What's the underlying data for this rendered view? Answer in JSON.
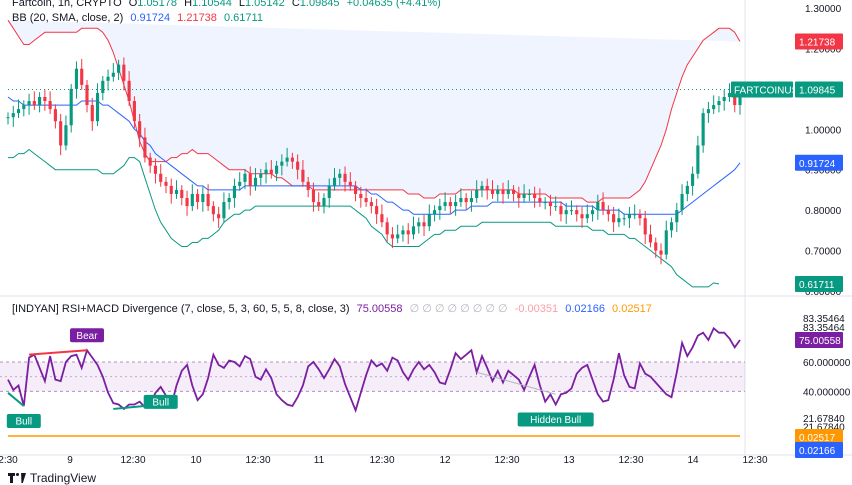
{
  "legend_main": {
    "symbol": "Fartcoin, 1h, CRYPTO",
    "o_label": "O",
    "o_val": "1.05178",
    "h_label": "H",
    "h_val": "1.10544",
    "l_label": "L",
    "l_val": "1.05142",
    "c_label": "C",
    "c_val": "1.09845",
    "change": "+0.04635 (+4.41%)"
  },
  "legend_bb": {
    "label": "BB (20, SMA, close, 2)",
    "basis": "0.91724",
    "upper": "1.21738",
    "lower": "0.61711"
  },
  "legend_osc": {
    "label": "[INDYAN] RSI+MACD Divergence (7, close, 5, 3, 60, 5, 5, 8, close, 3)",
    "rsi": "75.00558",
    "zeros": "∅ ∅ ∅ ∅ ∅ ∅ ∅ ∅",
    "macd_neg": "-0.00351",
    "macd_a": "0.02166",
    "macd_b": "0.02517"
  },
  "colors": {
    "up": "#089981",
    "down": "#f23645",
    "bb_upper": "#f23645",
    "bb_basis": "#2962ff",
    "bb_lower": "#089981",
    "rsi": "#7b1fa2",
    "macd": "#ff9800",
    "band": "#7b1fa2"
  },
  "footer": {
    "brand": "TradingView"
  },
  "chart_data": [
    {
      "type": "candlestick",
      "title": "Fartcoin, 1h, CRYPTO",
      "price_axis_ticks": [
        "1.30000",
        "1.20000",
        "1.00000",
        "0.90000",
        "0.80000",
        "0.70000",
        "0.60000"
      ],
      "price_tags": [
        {
          "label": "",
          "value": "1.21738",
          "price": 1.21738,
          "color": "#f23645"
        },
        {
          "label": "FARTCOINUSD",
          "value": "1.09845",
          "price": 1.09845,
          "color": "#089981"
        },
        {
          "label": "",
          "value": "0.91724",
          "price": 0.91724,
          "color": "#2962ff"
        },
        {
          "label": "",
          "value": "0.61711",
          "price": 0.61711,
          "color": "#089981"
        }
      ],
      "ylim": [
        0.59,
        1.32
      ],
      "x_ticks": [
        "2:30",
        "9",
        "12:30",
        "10",
        "12:30",
        "11",
        "12:30",
        "12",
        "12:30",
        "13",
        "12:30",
        "14",
        "12:30"
      ],
      "closes": [
        1.03,
        1.04,
        1.05,
        1.06,
        1.07,
        1.06,
        1.08,
        1.07,
        1.05,
        1.02,
        0.96,
        1.01,
        1.1,
        1.15,
        1.11,
        1.06,
        1.02,
        1.09,
        1.12,
        1.13,
        1.14,
        1.16,
        1.12,
        1.07,
        1.02,
        0.98,
        0.93,
        0.91,
        0.89,
        0.87,
        0.86,
        0.84,
        0.85,
        0.83,
        0.81,
        0.84,
        0.82,
        0.84,
        0.81,
        0.79,
        0.78,
        0.82,
        0.83,
        0.86,
        0.87,
        0.89,
        0.86,
        0.88,
        0.89,
        0.9,
        0.89,
        0.91,
        0.92,
        0.93,
        0.92,
        0.9,
        0.87,
        0.85,
        0.82,
        0.81,
        0.83,
        0.86,
        0.88,
        0.89,
        0.87,
        0.86,
        0.84,
        0.83,
        0.82,
        0.81,
        0.79,
        0.77,
        0.74,
        0.73,
        0.74,
        0.75,
        0.74,
        0.76,
        0.77,
        0.76,
        0.79,
        0.8,
        0.81,
        0.82,
        0.81,
        0.82,
        0.83,
        0.82,
        0.83,
        0.85,
        0.86,
        0.85,
        0.84,
        0.85,
        0.84,
        0.85,
        0.84,
        0.83,
        0.84,
        0.84,
        0.83,
        0.82,
        0.82,
        0.81,
        0.81,
        0.79,
        0.8,
        0.8,
        0.79,
        0.78,
        0.79,
        0.8,
        0.82,
        0.8,
        0.79,
        0.77,
        0.78,
        0.78,
        0.79,
        0.79,
        0.78,
        0.74,
        0.72,
        0.7,
        0.69,
        0.75,
        0.77,
        0.8,
        0.84,
        0.86,
        0.89,
        0.96,
        1.04,
        1.05,
        1.06,
        1.07,
        1.08,
        1.09,
        1.06,
        1.09845
      ],
      "bb_upper": [
        1.27,
        1.25,
        1.23,
        1.21,
        1.21,
        1.22,
        1.23,
        1.24,
        1.24,
        1.24,
        1.24,
        1.24,
        1.24,
        1.24,
        1.25,
        1.25,
        1.25,
        1.25,
        1.24,
        1.22,
        1.19,
        1.15,
        1.11,
        1.07,
        1.02,
        0.97,
        0.94,
        0.92,
        0.92,
        0.92,
        0.92,
        0.93,
        0.93,
        0.94,
        0.94,
        0.95,
        0.94,
        0.94,
        0.94,
        0.93,
        0.92,
        0.91,
        0.9,
        0.9,
        0.9,
        0.9,
        0.89,
        0.89,
        0.89,
        0.89,
        0.89,
        0.88,
        0.88,
        0.87,
        0.86,
        0.86,
        0.86,
        0.86,
        0.85,
        0.85,
        0.85,
        0.85,
        0.85,
        0.85,
        0.85,
        0.85,
        0.85,
        0.85,
        0.85,
        0.85,
        0.85,
        0.85,
        0.85,
        0.85,
        0.85,
        0.85,
        0.84,
        0.84,
        0.84,
        0.83,
        0.83,
        0.83,
        0.84,
        0.84,
        0.84,
        0.84,
        0.85,
        0.85,
        0.85,
        0.85,
        0.85,
        0.85,
        0.85,
        0.85,
        0.85,
        0.85,
        0.85,
        0.84,
        0.84,
        0.84,
        0.84,
        0.84,
        0.84,
        0.83,
        0.83,
        0.83,
        0.83,
        0.83,
        0.83,
        0.83,
        0.82,
        0.82,
        0.82,
        0.83,
        0.83,
        0.83,
        0.83,
        0.83,
        0.83,
        0.84,
        0.85,
        0.87,
        0.9,
        0.93,
        0.96,
        1.0,
        1.05,
        1.09,
        1.13,
        1.16,
        1.18,
        1.2,
        1.22,
        1.23,
        1.24,
        1.25,
        1.25,
        1.25,
        1.24,
        1.21738
      ],
      "bb_basis": [
        1.08,
        1.07,
        1.07,
        1.06,
        1.06,
        1.06,
        1.06,
        1.06,
        1.06,
        1.06,
        1.06,
        1.06,
        1.06,
        1.06,
        1.07,
        1.07,
        1.07,
        1.07,
        1.06,
        1.06,
        1.05,
        1.04,
        1.03,
        1.02,
        1.0,
        0.99,
        0.97,
        0.96,
        0.94,
        0.93,
        0.92,
        0.91,
        0.9,
        0.89,
        0.88,
        0.87,
        0.86,
        0.86,
        0.85,
        0.85,
        0.85,
        0.85,
        0.85,
        0.85,
        0.85,
        0.86,
        0.86,
        0.86,
        0.86,
        0.86,
        0.86,
        0.86,
        0.86,
        0.86,
        0.86,
        0.86,
        0.86,
        0.86,
        0.86,
        0.86,
        0.86,
        0.86,
        0.86,
        0.86,
        0.86,
        0.86,
        0.86,
        0.85,
        0.85,
        0.84,
        0.84,
        0.83,
        0.82,
        0.82,
        0.81,
        0.8,
        0.8,
        0.79,
        0.79,
        0.79,
        0.79,
        0.79,
        0.79,
        0.79,
        0.79,
        0.8,
        0.8,
        0.8,
        0.81,
        0.81,
        0.81,
        0.81,
        0.82,
        0.82,
        0.82,
        0.82,
        0.82,
        0.82,
        0.82,
        0.82,
        0.82,
        0.82,
        0.82,
        0.82,
        0.82,
        0.82,
        0.81,
        0.81,
        0.81,
        0.81,
        0.81,
        0.81,
        0.8,
        0.8,
        0.8,
        0.8,
        0.8,
        0.79,
        0.79,
        0.79,
        0.79,
        0.79,
        0.79,
        0.79,
        0.79,
        0.79,
        0.79,
        0.79,
        0.8,
        0.81,
        0.82,
        0.83,
        0.84,
        0.85,
        0.86,
        0.87,
        0.88,
        0.89,
        0.9,
        0.91724
      ],
      "bb_lower": [
        0.93,
        0.93,
        0.94,
        0.94,
        0.95,
        0.94,
        0.93,
        0.92,
        0.91,
        0.9,
        0.9,
        0.9,
        0.9,
        0.9,
        0.9,
        0.9,
        0.9,
        0.9,
        0.89,
        0.89,
        0.89,
        0.9,
        0.91,
        0.93,
        0.93,
        0.92,
        0.88,
        0.84,
        0.8,
        0.77,
        0.75,
        0.73,
        0.72,
        0.71,
        0.71,
        0.72,
        0.72,
        0.73,
        0.73,
        0.74,
        0.75,
        0.77,
        0.78,
        0.79,
        0.79,
        0.8,
        0.8,
        0.81,
        0.81,
        0.81,
        0.81,
        0.81,
        0.81,
        0.81,
        0.81,
        0.81,
        0.81,
        0.81,
        0.81,
        0.81,
        0.81,
        0.81,
        0.81,
        0.81,
        0.81,
        0.81,
        0.8,
        0.79,
        0.78,
        0.76,
        0.75,
        0.74,
        0.72,
        0.71,
        0.71,
        0.71,
        0.71,
        0.71,
        0.71,
        0.72,
        0.73,
        0.74,
        0.74,
        0.75,
        0.75,
        0.75,
        0.76,
        0.76,
        0.76,
        0.76,
        0.77,
        0.77,
        0.77,
        0.77,
        0.77,
        0.77,
        0.77,
        0.77,
        0.77,
        0.77,
        0.77,
        0.77,
        0.77,
        0.77,
        0.76,
        0.76,
        0.76,
        0.76,
        0.76,
        0.76,
        0.76,
        0.75,
        0.75,
        0.75,
        0.74,
        0.74,
        0.74,
        0.74,
        0.73,
        0.73,
        0.72,
        0.71,
        0.7,
        0.69,
        0.68,
        0.67,
        0.66,
        0.64,
        0.63,
        0.62,
        0.61,
        0.61,
        0.61,
        0.61,
        0.62,
        0.61711
      ]
    },
    {
      "type": "line",
      "title": "[INDYAN] RSI+MACD Divergence (7, close, 5, 3, 60, 5, 5, 8, close, 3)",
      "axis_ticks": [
        "83.35464",
        "83.35464",
        "60.000000",
        "40.000000",
        "21.67840",
        "21.67840"
      ],
      "band": [
        40,
        60
      ],
      "ylim": [
        0,
        90
      ],
      "rsi_tag": "75.00558",
      "macd_tags": [
        "0.02517",
        "0.02166"
      ],
      "rsi": [
        48,
        41,
        44,
        30,
        63,
        65,
        56,
        47,
        64,
        48,
        47,
        60,
        64,
        65,
        56,
        68,
        63,
        58,
        50,
        39,
        32,
        31,
        28,
        31,
        31,
        33,
        29,
        32,
        39,
        43,
        37,
        30,
        44,
        54,
        58,
        44,
        34,
        38,
        49,
        65,
        58,
        56,
        61,
        60,
        57,
        64,
        62,
        50,
        48,
        55,
        49,
        38,
        34,
        31,
        30,
        36,
        44,
        57,
        60,
        55,
        49,
        55,
        62,
        57,
        45,
        36,
        27,
        39,
        51,
        61,
        57,
        59,
        54,
        63,
        61,
        53,
        48,
        55,
        60,
        55,
        58,
        53,
        46,
        45,
        55,
        66,
        62,
        65,
        68,
        53,
        64,
        56,
        47,
        54,
        46,
        54,
        51,
        48,
        41,
        50,
        58,
        44,
        33,
        38,
        31,
        38,
        39,
        42,
        52,
        56,
        58,
        48,
        38,
        33,
        34,
        48,
        66,
        51,
        43,
        42,
        59,
        52,
        50,
        46,
        42,
        38,
        36,
        53,
        73,
        64,
        70,
        78,
        80,
        75,
        83,
        80,
        80,
        76,
        70,
        75
      ],
      "macd": [
        0.025,
        0.025,
        0.025,
        0.025,
        0.025,
        0.025,
        0.025,
        0.025,
        0.025,
        0.025,
        0.025,
        0.025,
        0.025,
        0.025,
        0.025,
        0.025,
        0.025,
        0.025,
        0.025,
        0.025,
        0.025,
        0.025,
        0.025,
        0.025,
        0.025,
        0.025,
        0.025,
        0.025,
        0.025,
        0.025,
        0.025,
        0.025,
        0.025,
        0.025,
        0.025,
        0.025,
        0.025,
        0.025,
        0.025,
        0.025,
        0.025,
        0.025,
        0.025,
        0.025,
        0.025,
        0.025,
        0.025,
        0.025,
        0.025,
        0.025,
        0.025,
        0.025,
        0.025,
        0.025,
        0.025,
        0.025,
        0.025,
        0.025,
        0.025,
        0.025,
        0.025,
        0.025,
        0.025,
        0.025,
        0.025,
        0.025,
        0.025,
        0.025,
        0.025,
        0.025,
        0.025,
        0.025,
        0.025,
        0.025,
        0.025,
        0.025,
        0.025,
        0.025,
        0.025,
        0.025,
        0.025,
        0.025,
        0.025,
        0.025,
        0.025,
        0.025,
        0.025,
        0.025,
        0.025,
        0.025,
        0.025,
        0.025,
        0.025,
        0.025,
        0.025,
        0.025,
        0.025,
        0.025,
        0.025,
        0.025,
        0.025,
        0.025,
        0.025,
        0.025,
        0.025,
        0.025,
        0.025,
        0.025,
        0.025,
        0.025,
        0.025,
        0.025,
        0.025,
        0.025,
        0.025,
        0.025,
        0.025,
        0.025,
        0.025,
        0.025,
        0.025,
        0.025,
        0.025,
        0.025,
        0.025,
        0.025,
        0.025,
        0.025,
        0.025,
        0.025,
        0.025,
        0.025,
        0.025,
        0.025,
        0.025,
        0.025,
        0.025,
        0.025,
        0.025,
        0.02517
      ],
      "annotations": [
        {
          "label": "Bear",
          "type": "bear",
          "index": 15
        },
        {
          "label": "Bull",
          "type": "bull",
          "index": 3
        },
        {
          "label": "Bull",
          "type": "bull",
          "index": 29
        },
        {
          "label": "Hidden Bull",
          "type": "bull",
          "index": 104
        }
      ]
    }
  ]
}
